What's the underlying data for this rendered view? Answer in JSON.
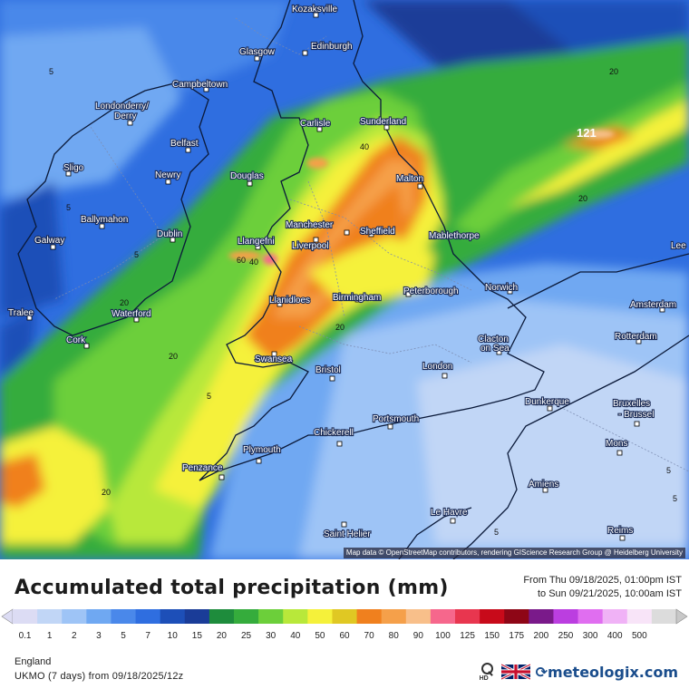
{
  "title": "Accumulated total precipitation (mm)",
  "period": {
    "from": "From Thu 09/18/2025, 01:00pm IST",
    "to": "to Sun 09/21/2025, 10:00am IST"
  },
  "region": "England",
  "model_run": "UKMO (7 days) from 09/18/2025/12z",
  "brand": "meteologix.com",
  "hd_label": "HD",
  "attribution": "Map data © OpenStreetMap contributors, rendering GIScience Research Group @ Heidelberg University",
  "map_icons": {
    "zoom": "magnifier-icon",
    "language": "uk-flag-icon"
  },
  "legend": {
    "ticks": [
      "0.1",
      "1",
      "2",
      "3",
      "5",
      "7",
      "10",
      "15",
      "20",
      "25",
      "30",
      "40",
      "50",
      "60",
      "70",
      "80",
      "90",
      "100",
      "125",
      "150",
      "175",
      "200",
      "250",
      "300",
      "400",
      "500"
    ],
    "colors": [
      "#dcdcf4",
      "#c1d6f6",
      "#9ec4f6",
      "#6fa8f2",
      "#4a88ea",
      "#2f6ee0",
      "#1d4fb8",
      "#1a3c98",
      "#1e8c3c",
      "#35ac3c",
      "#6ccf3a",
      "#b8e83a",
      "#f5f13a",
      "#e0c823",
      "#f0801e",
      "#f5a04a",
      "#f8bf8a",
      "#f6678c",
      "#e8364f",
      "#c80a1a",
      "#8e0616",
      "#7a1a8a",
      "#bb3ee0",
      "#e06ef0",
      "#f0b2f6",
      "#f8e4f8",
      "#dcdcdc"
    ]
  },
  "cities": [
    {
      "name": "Kozaksville"
    },
    {
      "name": "Glasgow"
    },
    {
      "name": "Edinburgh"
    },
    {
      "name": "Campbeltown"
    },
    {
      "name": "Londonderry/\nDerry"
    },
    {
      "name": "Carlisle"
    },
    {
      "name": "Sunderland"
    },
    {
      "name": "Belfast"
    },
    {
      "name": "Sligo"
    },
    {
      "name": "Newry"
    },
    {
      "name": "Douglas"
    },
    {
      "name": "Malton"
    },
    {
      "name": "Ballymahon"
    },
    {
      "name": "Dublin"
    },
    {
      "name": "Manchester"
    },
    {
      "name": "Sheffield"
    },
    {
      "name": "Galway"
    },
    {
      "name": "Llangefni"
    },
    {
      "name": "Liverpool"
    },
    {
      "name": "Mablethorpe"
    },
    {
      "name": "Peterborough"
    },
    {
      "name": "Norwich"
    },
    {
      "name": "Llanidloes"
    },
    {
      "name": "Birmingham"
    },
    {
      "name": "Tralee"
    },
    {
      "name": "Waterford"
    },
    {
      "name": "Cork"
    },
    {
      "name": "Clacton\non Sea"
    },
    {
      "name": "Swansea"
    },
    {
      "name": "Bristol"
    },
    {
      "name": "London"
    },
    {
      "name": "Amsterdam"
    },
    {
      "name": "Rotterdam"
    },
    {
      "name": "Leeds"
    },
    {
      "name": "Dunkerque"
    },
    {
      "name": "Bruxelles\n- Brussel"
    },
    {
      "name": "Chickerell"
    },
    {
      "name": "Portsmouth"
    },
    {
      "name": "Plymouth"
    },
    {
      "name": "Mons"
    },
    {
      "name": "Penzance"
    },
    {
      "name": "Amiens"
    },
    {
      "name": "Le Havre"
    },
    {
      "name": "Saint Helier"
    },
    {
      "name": "Reims"
    }
  ],
  "contour_labels": [
    "5",
    "5",
    "5",
    "20",
    "20",
    "20",
    "40",
    "60",
    "40",
    "20",
    "20",
    "20",
    "5",
    "5",
    "5",
    "5",
    "121"
  ]
}
